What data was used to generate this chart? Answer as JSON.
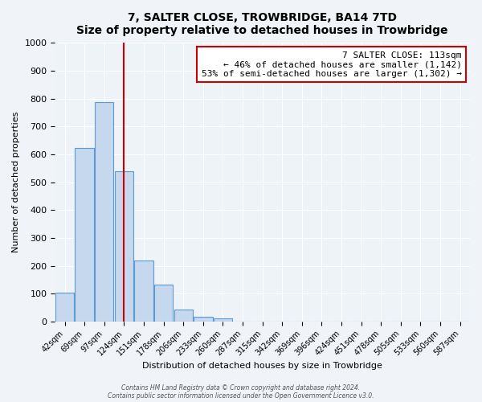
{
  "title": "7, SALTER CLOSE, TROWBRIDGE, BA14 7TD",
  "subtitle": "Size of property relative to detached houses in Trowbridge",
  "xlabel": "Distribution of detached houses by size in Trowbridge",
  "ylabel": "Number of detached properties",
  "bar_color": "#c5d8ed",
  "bar_edge_color": "#5b9bd5",
  "background_color": "#eef3f8",
  "grid_color": "#ffffff",
  "bins": [
    "42sqm",
    "69sqm",
    "97sqm",
    "124sqm",
    "151sqm",
    "178sqm",
    "206sqm",
    "233sqm",
    "260sqm",
    "287sqm",
    "315sqm",
    "342sqm",
    "369sqm",
    "396sqm",
    "424sqm",
    "451sqm",
    "478sqm",
    "505sqm",
    "533sqm",
    "560sqm",
    "587sqm"
  ],
  "values": [
    103,
    622,
    787,
    540,
    220,
    133,
    43,
    18,
    10,
    0,
    0,
    0,
    0,
    0,
    0,
    0,
    0,
    0,
    0,
    0,
    0
  ],
  "ylim": [
    0,
    1000
  ],
  "yticks": [
    0,
    100,
    200,
    300,
    400,
    500,
    600,
    700,
    800,
    900,
    1000
  ],
  "vline_x": 2.97,
  "vline_color": "#cc0000",
  "annotation_title": "7 SALTER CLOSE: 113sqm",
  "annotation_line1": "← 46% of detached houses are smaller (1,142)",
  "annotation_line2": "53% of semi-detached houses are larger (1,302) →",
  "annotation_box_color": "#ffffff",
  "annotation_border_color": "#cc0000",
  "footer1": "Contains HM Land Registry data © Crown copyright and database right 2024.",
  "footer2": "Contains public sector information licensed under the Open Government Licence v3.0."
}
